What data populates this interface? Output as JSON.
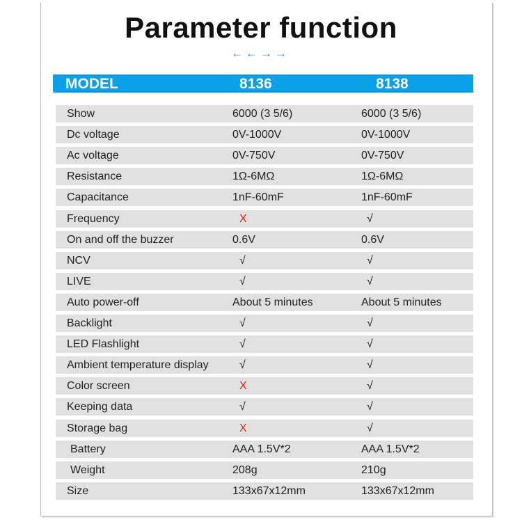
{
  "title": "Parameter function",
  "arrows_icon": "blue-arrows-decoration",
  "accent_color": "#0aa0e8",
  "header": {
    "label": "MODEL",
    "models": [
      "8136",
      "8138"
    ]
  },
  "rows": [
    {
      "label": "Show",
      "v1": "6000 (3 5/6)",
      "v2": "6000 (3 5/6)"
    },
    {
      "label": "Dc voltage",
      "v1": "0V-1000V",
      "v2": "0V-1000V"
    },
    {
      "label": "Ac voltage",
      "v1": "0V-750V",
      "v2": "0V-750V"
    },
    {
      "label": "Resistance",
      "v1": "1Ω-6MΩ",
      "v2": "1Ω-6MΩ"
    },
    {
      "label": "Capacitance",
      "v1": "1nF-60mF",
      "v2": "1nF-60mF"
    },
    {
      "label": "Frequency",
      "v1": "X",
      "v2": "√"
    },
    {
      "label": "On and off the buzzer",
      "v1": "0.6V",
      "v2": "0.6V"
    },
    {
      "label": "NCV",
      "v1": "√",
      "v2": "√"
    },
    {
      "label": "LIVE",
      "v1": "√",
      "v2": "√"
    },
    {
      "label": "Auto power-off",
      "v1": "About 5 minutes",
      "v2": "About 5 minutes"
    },
    {
      "label": "Backlight",
      "v1": "√",
      "v2": "√"
    },
    {
      "label": "LED Flashlight",
      "v1": "√",
      "v2": "√"
    },
    {
      "label": "Ambient temperature display",
      "v1": "√",
      "v2": "√"
    },
    {
      "label": "Color screen",
      "v1": "X",
      "v2": "√"
    },
    {
      "label": "Keeping data",
      "v1": "√",
      "v2": "√"
    },
    {
      "label": "Storage bag",
      "v1": "X",
      "v2": "√"
    },
    {
      "label": " Battery",
      "v1": "AAA 1.5V*2",
      "v2": "AAA 1.5V*2"
    },
    {
      "label": " Weight",
      "v1": "208g",
      "v2": "210g"
    },
    {
      "label": "Size",
      "v1": "133x67x12mm",
      "v2": "133x67x12mm"
    }
  ]
}
